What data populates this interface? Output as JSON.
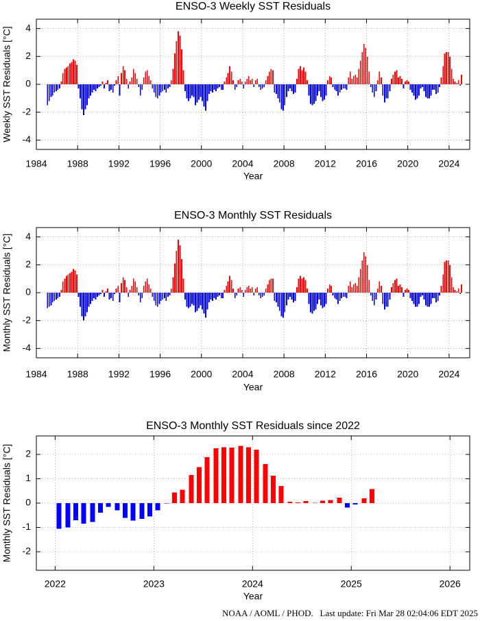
{
  "chart_data": [
    {
      "type": "bar",
      "title": "ENSO-3 Weekly SST Residuals",
      "xlabel": "Year",
      "ylabel": "Weekly SST Residuals [°C]",
      "positive_color": "#ff0000",
      "negative_color": "#0000ff",
      "grid": true,
      "xlim": [
        1984,
        2026
      ],
      "xticks": [
        1984,
        1988,
        1992,
        1996,
        2000,
        2004,
        2008,
        2012,
        2016,
        2020,
        2024
      ],
      "ylim": [
        -4.67,
        4.67
      ],
      "yticks": [
        -4,
        -2,
        0,
        2,
        4
      ],
      "x": [
        1985.08,
        1985.25,
        1985.42,
        1985.58,
        1985.75,
        1985.92,
        1986.08,
        1986.25,
        1986.42,
        1986.58,
        1986.75,
        1986.92,
        1987.08,
        1987.25,
        1987.42,
        1987.58,
        1987.75,
        1987.92,
        1988.08,
        1988.25,
        1988.42,
        1988.58,
        1988.75,
        1988.92,
        1989.08,
        1989.25,
        1989.42,
        1989.58,
        1989.75,
        1989.92,
        1990.08,
        1990.25,
        1990.42,
        1990.58,
        1990.75,
        1990.92,
        1991.08,
        1991.25,
        1991.42,
        1991.58,
        1991.75,
        1991.92,
        1992.08,
        1992.25,
        1992.42,
        1992.58,
        1992.75,
        1992.92,
        1993.08,
        1993.25,
        1993.42,
        1993.58,
        1993.75,
        1993.92,
        1994.08,
        1994.25,
        1994.42,
        1994.58,
        1994.75,
        1994.92,
        1995.08,
        1995.25,
        1995.42,
        1995.58,
        1995.75,
        1995.92,
        1996.08,
        1996.25,
        1996.42,
        1996.58,
        1996.75,
        1996.92,
        1997.08,
        1997.25,
        1997.42,
        1997.58,
        1997.75,
        1997.92,
        1998.08,
        1998.25,
        1998.42,
        1998.58,
        1998.75,
        1998.92,
        1999.08,
        1999.25,
        1999.42,
        1999.58,
        1999.75,
        1999.92,
        2000.08,
        2000.25,
        2000.42,
        2000.58,
        2000.75,
        2000.92,
        2001.08,
        2001.25,
        2001.42,
        2001.58,
        2001.75,
        2001.92,
        2002.08,
        2002.25,
        2002.42,
        2002.58,
        2002.75,
        2002.92,
        2003.08,
        2003.25,
        2003.42,
        2003.58,
        2003.75,
        2003.92,
        2004.08,
        2004.25,
        2004.42,
        2004.58,
        2004.75,
        2004.92,
        2005.08,
        2005.25,
        2005.42,
        2005.58,
        2005.75,
        2005.92,
        2006.08,
        2006.25,
        2006.42,
        2006.58,
        2006.75,
        2006.92,
        2007.08,
        2007.25,
        2007.42,
        2007.58,
        2007.75,
        2007.92,
        2008.08,
        2008.25,
        2008.42,
        2008.58,
        2008.75,
        2008.92,
        2009.08,
        2009.25,
        2009.42,
        2009.58,
        2009.75,
        2009.92,
        2010.08,
        2010.25,
        2010.42,
        2010.58,
        2010.75,
        2010.92,
        2011.08,
        2011.25,
        2011.42,
        2011.58,
        2011.75,
        2011.92,
        2012.08,
        2012.25,
        2012.42,
        2012.58,
        2012.75,
        2012.92,
        2013.08,
        2013.25,
        2013.42,
        2013.58,
        2013.75,
        2013.92,
        2014.08,
        2014.25,
        2014.42,
        2014.58,
        2014.75,
        2014.92,
        2015.08,
        2015.25,
        2015.42,
        2015.58,
        2015.75,
        2015.92,
        2016.08,
        2016.25,
        2016.42,
        2016.58,
        2016.75,
        2016.92,
        2017.08,
        2017.25,
        2017.42,
        2017.58,
        2017.75,
        2017.92,
        2018.08,
        2018.25,
        2018.42,
        2018.58,
        2018.75,
        2018.92,
        2019.08,
        2019.25,
        2019.42,
        2019.58,
        2019.75,
        2019.92,
        2020.08,
        2020.25,
        2020.42,
        2020.58,
        2020.75,
        2020.92,
        2021.08,
        2021.25,
        2021.42,
        2021.58,
        2021.75,
        2021.92,
        2022.08,
        2022.25,
        2022.42,
        2022.58,
        2022.75,
        2022.92,
        2023.08,
        2023.25,
        2023.42,
        2023.58,
        2023.75,
        2023.92,
        2024.08,
        2024.25,
        2024.42,
        2024.58,
        2024.75,
        2024.92,
        2025.08,
        2025.2
      ],
      "values": [
        -1.5,
        -1.2,
        -0.9,
        -0.8,
        -0.6,
        -0.5,
        -0.4,
        -0.3,
        0.2,
        0.8,
        1.1,
        1.2,
        1.3,
        1.5,
        1.6,
        1.8,
        1.7,
        1.4,
        -0.3,
        -1.0,
        -1.8,
        -2.2,
        -1.8,
        -1.5,
        -1.0,
        -0.8,
        -0.6,
        -0.4,
        -0.5,
        -0.3,
        -0.2,
        -0.1,
        0.2,
        -0.3,
        0.1,
        0.3,
        -0.5,
        -0.4,
        -0.6,
        -0.1,
        0.3,
        0.6,
        -0.8,
        0.8,
        1.3,
        1.0,
        0.4,
        -0.3,
        0.2,
        0.5,
        1.1,
        0.8,
        0.4,
        -0.2,
        -0.8,
        -0.4,
        0.5,
        0.9,
        1.0,
        0.6,
        0.3,
        -0.3,
        -0.6,
        -0.9,
        -1.0,
        -0.8,
        -0.6,
        -0.5,
        -0.4,
        -0.6,
        -0.3,
        -0.2,
        0.3,
        1.1,
        2.2,
        3.1,
        3.8,
        3.5,
        2.5,
        1.0,
        -0.5,
        -1.0,
        -1.2,
        -1.0,
        -0.8,
        -0.9,
        -1.5,
        -1.3,
        -1.1,
        -0.9,
        -1.2,
        -1.6,
        -1.9,
        -1.2,
        -0.7,
        -0.5,
        -0.6,
        -0.4,
        -0.5,
        -0.3,
        -0.2,
        -0.4,
        -0.4,
        0.2,
        0.5,
        0.8,
        1.3,
        0.9,
        0.3,
        -0.4,
        -0.2,
        0.3,
        0.4,
        0.2,
        -0.3,
        0.2,
        0.4,
        0.6,
        0.3,
        0.4,
        -0.2,
        0.3,
        0.4,
        -0.2,
        -0.4,
        -0.3,
        -0.2,
        0.3,
        0.6,
        0.9,
        1.1,
        1.0,
        -0.6,
        -0.7,
        -1.0,
        -1.3,
        -1.8,
        -1.9,
        -1.5,
        -0.9,
        -0.5,
        -0.3,
        -0.5,
        -0.7,
        -0.6,
        0.4,
        1.1,
        1.3,
        1.0,
        1.2,
        0.9,
        0.3,
        -0.8,
        -1.4,
        -1.5,
        -1.4,
        -1.2,
        -0.8,
        -0.5,
        -0.9,
        -1.2,
        -1.1,
        -0.8,
        0.3,
        0.6,
        0.5,
        -0.2,
        -0.4,
        -0.5,
        -0.8,
        -0.6,
        -0.4,
        -0.3,
        -0.3,
        -0.4,
        0.5,
        0.9,
        0.4,
        0.6,
        0.7,
        0.5,
        1.1,
        1.7,
        2.3,
        2.9,
        2.6,
        2.0,
        0.9,
        -0.2,
        -0.6,
        -0.9,
        -0.5,
        0.3,
        0.9,
        0.5,
        -0.8,
        -1.3,
        -1.0,
        -1.0,
        -0.5,
        0.4,
        0.7,
        0.9,
        1.0,
        0.5,
        0.6,
        0.4,
        -0.3,
        0.2,
        0.3,
        0.2,
        -0.4,
        -0.6,
        -0.8,
        -1.1,
        -1.0,
        -0.8,
        -0.3,
        -0.2,
        -0.5,
        -0.9,
        -1.0,
        -1.0,
        -0.8,
        -0.4,
        -0.4,
        -0.7,
        -0.6,
        -0.2,
        0.5,
        1.3,
        2.2,
        2.3,
        2.3,
        2.0,
        1.1,
        0.4,
        0.2,
        0.1,
        0.3,
        -0.1,
        0.7
      ]
    },
    {
      "type": "bar",
      "title": "ENSO-3 Monthly SST Residuals",
      "xlabel": "Year",
      "ylabel": "Monthly SST Residuals [°C]",
      "positive_color": "#ff0000",
      "negative_color": "#0000ff",
      "grid": true,
      "xlim": [
        1984,
        2026
      ],
      "xticks": [
        1984,
        1988,
        1992,
        1996,
        2000,
        2004,
        2008,
        2012,
        2016,
        2020,
        2024
      ],
      "ylim": [
        -4.67,
        4.67
      ],
      "yticks": [
        -4,
        -2,
        0,
        2,
        4
      ],
      "x": [
        1985.08,
        1985.25,
        1985.42,
        1985.58,
        1985.75,
        1985.92,
        1986.08,
        1986.25,
        1986.42,
        1986.58,
        1986.75,
        1986.92,
        1987.08,
        1987.25,
        1987.42,
        1987.58,
        1987.75,
        1987.92,
        1988.08,
        1988.25,
        1988.42,
        1988.58,
        1988.75,
        1988.92,
        1989.08,
        1989.25,
        1989.42,
        1989.58,
        1989.75,
        1989.92,
        1990.08,
        1990.25,
        1990.42,
        1990.58,
        1990.75,
        1990.92,
        1991.08,
        1991.25,
        1991.42,
        1991.58,
        1991.75,
        1991.92,
        1992.08,
        1992.25,
        1992.42,
        1992.58,
        1992.75,
        1992.92,
        1993.08,
        1993.25,
        1993.42,
        1993.58,
        1993.75,
        1993.92,
        1994.08,
        1994.25,
        1994.42,
        1994.58,
        1994.75,
        1994.92,
        1995.08,
        1995.25,
        1995.42,
        1995.58,
        1995.75,
        1995.92,
        1996.08,
        1996.25,
        1996.42,
        1996.58,
        1996.75,
        1996.92,
        1997.08,
        1997.25,
        1997.42,
        1997.58,
        1997.75,
        1997.92,
        1998.08,
        1998.25,
        1998.42,
        1998.58,
        1998.75,
        1998.92,
        1999.08,
        1999.25,
        1999.42,
        1999.58,
        1999.75,
        1999.92,
        2000.08,
        2000.25,
        2000.42,
        2000.58,
        2000.75,
        2000.92,
        2001.08,
        2001.25,
        2001.42,
        2001.58,
        2001.75,
        2001.92,
        2002.08,
        2002.25,
        2002.42,
        2002.58,
        2002.75,
        2002.92,
        2003.08,
        2003.25,
        2003.42,
        2003.58,
        2003.75,
        2003.92,
        2004.08,
        2004.25,
        2004.42,
        2004.58,
        2004.75,
        2004.92,
        2005.08,
        2005.25,
        2005.42,
        2005.58,
        2005.75,
        2005.92,
        2006.08,
        2006.25,
        2006.42,
        2006.58,
        2006.75,
        2006.92,
        2007.08,
        2007.25,
        2007.42,
        2007.58,
        2007.75,
        2007.92,
        2008.08,
        2008.25,
        2008.42,
        2008.58,
        2008.75,
        2008.92,
        2009.08,
        2009.25,
        2009.42,
        2009.58,
        2009.75,
        2009.92,
        2010.08,
        2010.25,
        2010.42,
        2010.58,
        2010.75,
        2010.92,
        2011.08,
        2011.25,
        2011.42,
        2011.58,
        2011.75,
        2011.92,
        2012.08,
        2012.25,
        2012.42,
        2012.58,
        2012.75,
        2012.92,
        2013.08,
        2013.25,
        2013.42,
        2013.58,
        2013.75,
        2013.92,
        2014.08,
        2014.25,
        2014.42,
        2014.58,
        2014.75,
        2014.92,
        2015.08,
        2015.25,
        2015.42,
        2015.58,
        2015.75,
        2015.92,
        2016.08,
        2016.25,
        2016.42,
        2016.58,
        2016.75,
        2016.92,
        2017.08,
        2017.25,
        2017.42,
        2017.58,
        2017.75,
        2017.92,
        2018.08,
        2018.25,
        2018.42,
        2018.58,
        2018.75,
        2018.92,
        2019.08,
        2019.25,
        2019.42,
        2019.58,
        2019.75,
        2019.92,
        2020.08,
        2020.25,
        2020.42,
        2020.58,
        2020.75,
        2020.92,
        2021.08,
        2021.25,
        2021.42,
        2021.58,
        2021.75,
        2021.92,
        2022.08,
        2022.25,
        2022.42,
        2022.58,
        2022.75,
        2022.92,
        2023.08,
        2023.25,
        2023.42,
        2023.58,
        2023.75,
        2023.92,
        2024.08,
        2024.25,
        2024.42,
        2024.58,
        2024.75,
        2024.92,
        2025.08,
        2025.2
      ],
      "values": [
        -1.1,
        -1.0,
        -0.9,
        -0.7,
        -0.6,
        -0.5,
        -0.4,
        -0.3,
        0.2,
        0.8,
        1.0,
        1.2,
        1.3,
        1.4,
        1.5,
        1.7,
        1.6,
        1.3,
        -0.3,
        -1.0,
        -1.7,
        -2.0,
        -1.7,
        -1.4,
        -1.0,
        -0.8,
        -0.6,
        -0.4,
        -0.5,
        -0.3,
        -0.2,
        -0.1,
        0.2,
        -0.3,
        0.1,
        0.3,
        -0.5,
        -0.4,
        -0.6,
        -0.1,
        0.3,
        0.5,
        -0.7,
        0.7,
        1.1,
        0.9,
        0.4,
        -0.3,
        0.2,
        0.5,
        1.0,
        0.8,
        0.4,
        -0.2,
        -0.7,
        -0.4,
        0.5,
        0.8,
        1.0,
        0.6,
        0.3,
        -0.3,
        -0.6,
        -0.9,
        -1.0,
        -0.8,
        -0.6,
        -0.5,
        -0.4,
        -0.6,
        -0.3,
        -0.2,
        0.3,
        1.1,
        2.1,
        3.0,
        3.8,
        3.4,
        2.4,
        1.0,
        -0.5,
        -1.0,
        -1.1,
        -1.0,
        -0.8,
        -0.9,
        -1.4,
        -1.3,
        -1.1,
        -0.9,
        -1.2,
        -1.5,
        -1.8,
        -1.2,
        -0.7,
        -0.5,
        -0.6,
        -0.4,
        -0.5,
        -0.3,
        -0.2,
        -0.4,
        -0.4,
        0.2,
        0.5,
        0.8,
        1.2,
        0.9,
        0.3,
        -0.4,
        -0.2,
        0.3,
        0.4,
        0.2,
        -0.3,
        0.2,
        0.4,
        0.5,
        0.3,
        0.4,
        -0.2,
        0.3,
        0.4,
        -0.2,
        -0.4,
        -0.3,
        -0.2,
        0.3,
        0.6,
        0.9,
        1.0,
        1.0,
        -0.6,
        -0.7,
        -1.0,
        -1.3,
        -1.7,
        -1.8,
        -1.4,
        -0.9,
        -0.5,
        -0.3,
        -0.5,
        -0.7,
        -0.6,
        0.4,
        1.0,
        1.2,
        1.0,
        1.1,
        0.9,
        0.3,
        -0.8,
        -1.4,
        -1.5,
        -1.3,
        -1.2,
        -0.8,
        -0.5,
        -0.9,
        -1.1,
        -1.0,
        -0.8,
        0.3,
        0.6,
        0.5,
        -0.2,
        -0.4,
        -0.5,
        -0.8,
        -0.6,
        -0.4,
        -0.3,
        -0.3,
        -0.4,
        0.5,
        0.8,
        0.4,
        0.6,
        0.7,
        0.5,
        1.1,
        1.7,
        2.3,
        2.9,
        2.6,
        2.0,
        0.9,
        -0.2,
        -0.6,
        -0.9,
        -0.5,
        0.3,
        0.8,
        0.5,
        -0.8,
        -1.2,
        -1.0,
        -1.0,
        -0.5,
        0.4,
        0.7,
        0.9,
        1.0,
        0.5,
        0.6,
        0.4,
        -0.3,
        0.2,
        0.3,
        0.2,
        -0.4,
        -0.6,
        -0.8,
        -1.0,
        -1.0,
        -0.8,
        -0.3,
        -0.2,
        -0.5,
        -0.9,
        -1.0,
        -1.0,
        -0.8,
        -0.4,
        -0.4,
        -0.7,
        -0.6,
        -0.2,
        0.5,
        1.3,
        2.2,
        2.3,
        2.3,
        2.0,
        1.1,
        0.4,
        0.2,
        0.1,
        0.3,
        -0.1,
        0.6
      ]
    },
    {
      "type": "bar",
      "title": "ENSO-3 Monthly SST Residuals since 2022",
      "xlabel": "Year",
      "ylabel": "Monthly SST Residuals [°C]",
      "positive_color": "#ff0000",
      "negative_color": "#0000ff",
      "grid": true,
      "xlim": [
        2021.81,
        2026.2
      ],
      "xticks": [
        2022,
        2023,
        2024,
        2025,
        2026
      ],
      "ylim": [
        -2.76,
        2.76
      ],
      "yticks": [
        -2,
        -1,
        0,
        1,
        2
      ],
      "x": [
        2022.04,
        2022.13,
        2022.21,
        2022.29,
        2022.38,
        2022.46,
        2022.54,
        2022.63,
        2022.71,
        2022.79,
        2022.88,
        2022.96,
        2023.04,
        2023.13,
        2023.21,
        2023.29,
        2023.38,
        2023.46,
        2023.54,
        2023.63,
        2023.71,
        2023.79,
        2023.88,
        2023.96,
        2024.04,
        2024.13,
        2024.21,
        2024.29,
        2024.38,
        2024.46,
        2024.54,
        2024.63,
        2024.71,
        2024.79,
        2024.88,
        2024.96,
        2025.04,
        2025.13,
        2025.21
      ],
      "values": [
        -1.05,
        -1.0,
        -0.7,
        -0.85,
        -0.78,
        -0.4,
        -0.15,
        -0.3,
        -0.6,
        -0.72,
        -0.65,
        -0.55,
        -0.3,
        -0.02,
        0.43,
        0.55,
        1.15,
        1.48,
        1.88,
        2.25,
        2.3,
        2.28,
        2.35,
        2.3,
        2.2,
        1.6,
        1.12,
        0.7,
        0.05,
        0.03,
        0.08,
        0.02,
        0.1,
        0.12,
        0.22,
        -0.18,
        -0.05,
        0.2,
        0.58
      ]
    }
  ],
  "footer": "NOAA / AOML / PHOD.   Last update: Fri Mar 28 02:04:06 EDT 2025"
}
